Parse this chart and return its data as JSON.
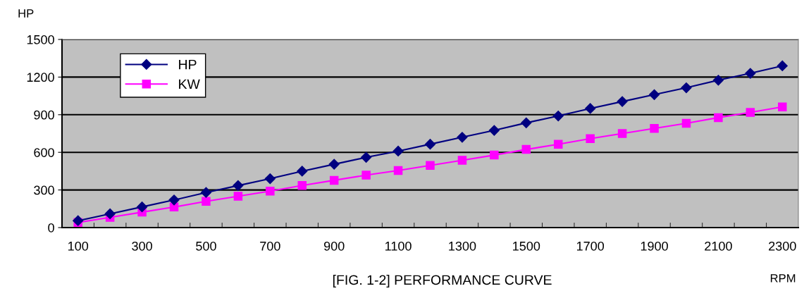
{
  "chart_data": {
    "type": "line",
    "title": "[FIG. 1-2] PERFORMANCE CURVE",
    "xlabel": "RPM",
    "ylabel": "HP",
    "categories": [
      "100",
      null,
      "300",
      null,
      "500",
      null,
      "700",
      null,
      "900",
      null,
      "1100",
      null,
      "1300",
      null,
      "1500",
      null,
      "1700",
      null,
      "1900",
      null,
      "2100",
      null,
      "2300"
    ],
    "series": [
      {
        "name": "HP",
        "color": "#000080",
        "marker": "diamond",
        "values": [
          55,
          110,
          165,
          220,
          280,
          335,
          390,
          450,
          505,
          560,
          610,
          665,
          720,
          775,
          835,
          890,
          950,
          1005,
          1060,
          1115,
          1175,
          1230,
          1290
        ]
      },
      {
        "name": "KW",
        "color": "#ff00ff",
        "marker": "square",
        "values": [
          41,
          82,
          123,
          164,
          209,
          250,
          291,
          336,
          377,
          418,
          455,
          496,
          537,
          578,
          623,
          664,
          709,
          750,
          791,
          832,
          877,
          918,
          962
        ]
      }
    ],
    "ylim": [
      0,
      1500
    ],
    "yticks": [
      0,
      300,
      600,
      900,
      1200,
      1500
    ],
    "grid": "y",
    "legend": "top left"
  }
}
